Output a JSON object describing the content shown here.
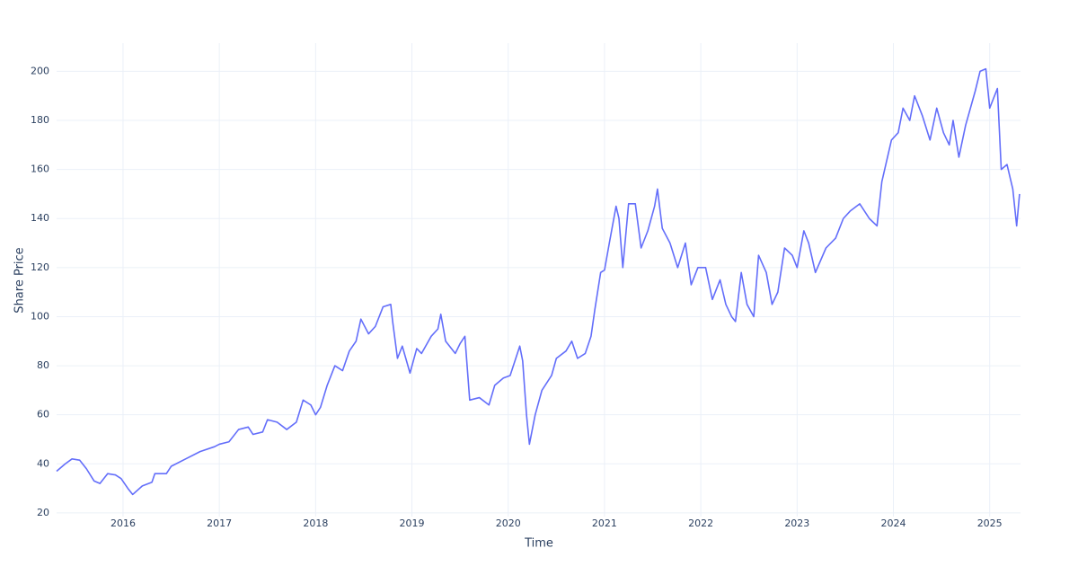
{
  "chart_data": {
    "type": "line",
    "x_label": "Time",
    "y_label": "Share Price",
    "xlim": [
      2015.31,
      2025.32
    ],
    "xticks": [
      2016,
      2017,
      2018,
      2019,
      2020,
      2021,
      2022,
      2023,
      2024,
      2025
    ],
    "ylim": [
      18.5,
      211.5
    ],
    "yticks": [
      20,
      40,
      60,
      80,
      100,
      120,
      140,
      160,
      180,
      200
    ],
    "grid": true,
    "series": [
      {
        "name": "Share Price",
        "color": "#636efa",
        "x": [
          2015.31,
          2015.4,
          2015.47,
          2015.55,
          2015.62,
          2015.7,
          2015.76,
          2015.84,
          2015.92,
          2015.98,
          2016.05,
          2016.1,
          2016.2,
          2016.3,
          2016.33,
          2016.45,
          2016.5,
          2016.65,
          2016.8,
          2016.95,
          2017.0,
          2017.1,
          2017.2,
          2017.3,
          2017.35,
          2017.45,
          2017.5,
          2017.6,
          2017.7,
          2017.8,
          2017.87,
          2017.95,
          2018.0,
          2018.05,
          2018.12,
          2018.2,
          2018.28,
          2018.35,
          2018.42,
          2018.47,
          2018.55,
          2018.62,
          2018.7,
          2018.78,
          2018.8,
          2018.85,
          2018.9,
          2018.98,
          2019.05,
          2019.1,
          2019.2,
          2019.27,
          2019.3,
          2019.35,
          2019.45,
          2019.5,
          2019.55,
          2019.6,
          2019.7,
          2019.8,
          2019.86,
          2019.95,
          2020.02,
          2020.12,
          2020.15,
          2020.19,
          2020.22,
          2020.28,
          2020.35,
          2020.45,
          2020.5,
          2020.6,
          2020.66,
          2020.72,
          2020.8,
          2020.86,
          2020.9,
          2020.96,
          2021.0,
          2021.05,
          2021.12,
          2021.15,
          2021.19,
          2021.25,
          2021.32,
          2021.38,
          2021.45,
          2021.52,
          2021.55,
          2021.6,
          2021.68,
          2021.76,
          2021.84,
          2021.9,
          2021.97,
          2022.05,
          2022.12,
          2022.2,
          2022.26,
          2022.32,
          2022.36,
          2022.42,
          2022.48,
          2022.55,
          2022.6,
          2022.68,
          2022.74,
          2022.8,
          2022.87,
          2022.95,
          2023.0,
          2023.07,
          2023.12,
          2023.19,
          2023.3,
          2023.4,
          2023.48,
          2023.55,
          2023.65,
          2023.75,
          2023.83,
          2023.88,
          2023.98,
          2024.05,
          2024.1,
          2024.17,
          2024.22,
          2024.3,
          2024.38,
          2024.45,
          2024.52,
          2024.58,
          2024.62,
          2024.68,
          2024.75,
          2024.8,
          2024.85,
          2024.9,
          2024.96,
          2025.0,
          2025.05,
          2025.08,
          2025.12,
          2025.18,
          2025.24,
          2025.28,
          2025.31
        ],
        "values": [
          37,
          40,
          42,
          41.5,
          38,
          33,
          32,
          36,
          35.5,
          34,
          30,
          27.5,
          31,
          32.5,
          36,
          36,
          39,
          42,
          45,
          47,
          48,
          49,
          54,
          55,
          52,
          53,
          58,
          57,
          54,
          57,
          66,
          64,
          60,
          63,
          72,
          80,
          78,
          86,
          90,
          99,
          93,
          96,
          104,
          105,
          98,
          83,
          88,
          77,
          87,
          85,
          92,
          95,
          101,
          90,
          85,
          89,
          92,
          66,
          67,
          64,
          72,
          75,
          76,
          88,
          82,
          60,
          48,
          60,
          70,
          76,
          83,
          86,
          90,
          83,
          85,
          92,
          103,
          118,
          119,
          130,
          145,
          140,
          120,
          146,
          146,
          128,
          135,
          145,
          152,
          136,
          130,
          120,
          130,
          113,
          120,
          120,
          107,
          115,
          105,
          100,
          98,
          118,
          105,
          100,
          125,
          118,
          105,
          110,
          128,
          125,
          120,
          135,
          130,
          118,
          128,
          132,
          140,
          143,
          146,
          140,
          137,
          155,
          172,
          175,
          185,
          180,
          190,
          182,
          172,
          185,
          175,
          170,
          180,
          165,
          178,
          185,
          192,
          200,
          201,
          185,
          190,
          193,
          160,
          162,
          152,
          137,
          150
        ]
      }
    ]
  }
}
